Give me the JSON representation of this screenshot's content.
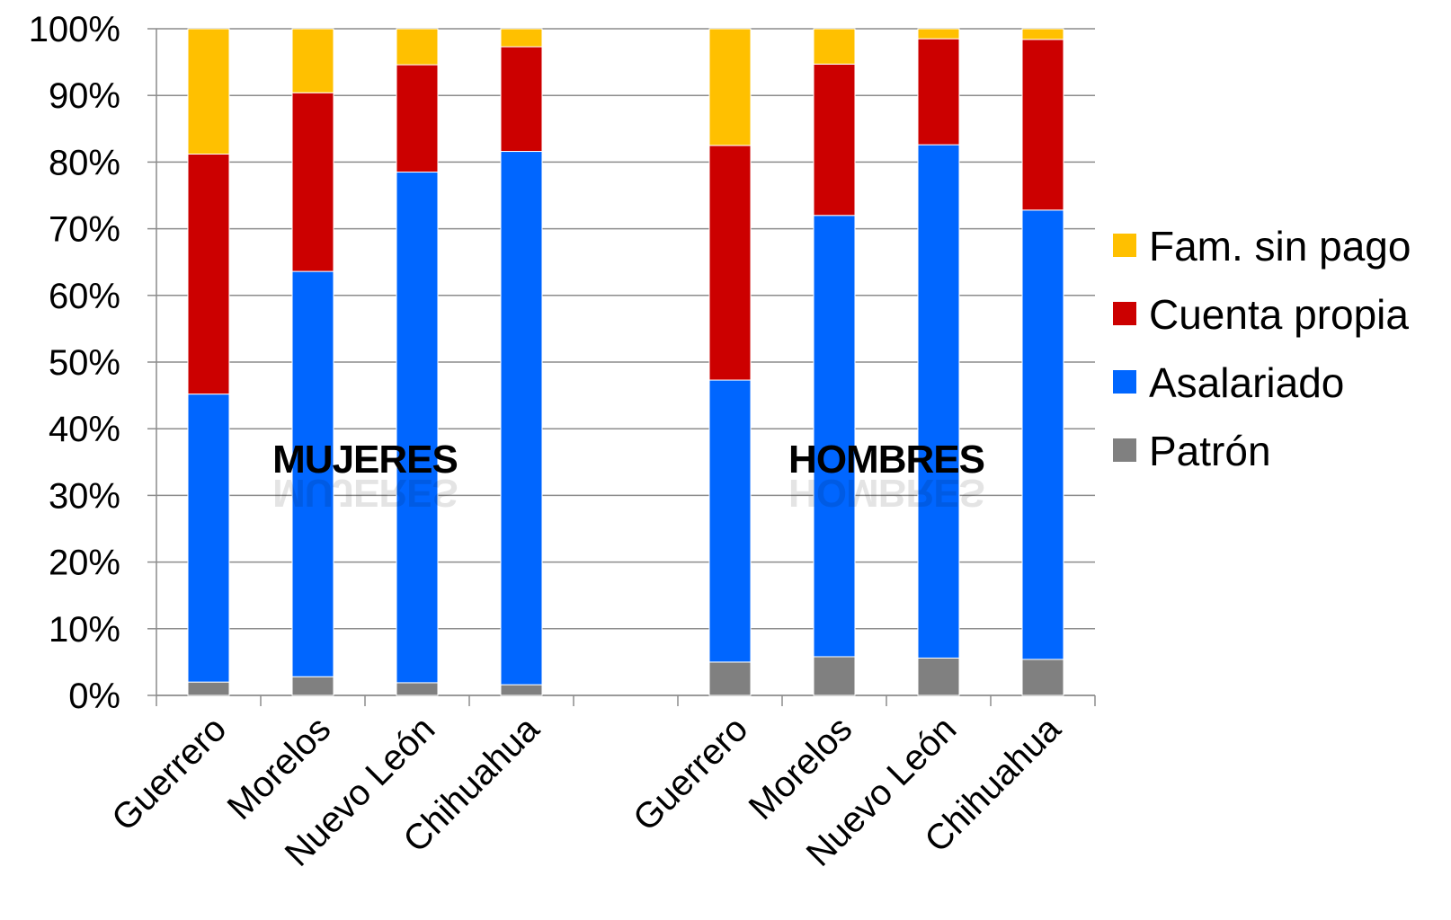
{
  "chart_data": {
    "type": "bar",
    "stacked": true,
    "percent": true,
    "categories": [
      "Guerrero",
      "Morelos",
      "Nuevo León",
      "Chihuahua",
      "",
      "Guerrero",
      "Morelos",
      "Nuevo León",
      "Chihuahua"
    ],
    "group_labels": [
      "MUJERES",
      "HOMBRES"
    ],
    "series": [
      {
        "name": "Patrón",
        "color": "#808080",
        "values": [
          2,
          2.8,
          1.9,
          1.6,
          null,
          5,
          5.8,
          5.6,
          5.4
        ]
      },
      {
        "name": "Asalariado",
        "color": "#0066ff",
        "values": [
          43.2,
          60.8,
          76.6,
          80,
          null,
          42.3,
          66.2,
          77,
          67.4
        ]
      },
      {
        "name": "Cuenta propia",
        "color": "#cc0000",
        "values": [
          36,
          26.8,
          16.1,
          15.7,
          null,
          35.2,
          22.7,
          15.9,
          25.6
        ]
      },
      {
        "name": "Fam. sin pago",
        "color": "#ffc000",
        "values": [
          18.8,
          9.6,
          5.4,
          2.7,
          null,
          17.5,
          5.3,
          1.5,
          1.6
        ]
      }
    ],
    "y_ticks": [
      "0%",
      "10%",
      "20%",
      "30%",
      "40%",
      "50%",
      "60%",
      "70%",
      "80%",
      "90%",
      "100%"
    ],
    "ylim": [
      0,
      100
    ],
    "grid": true,
    "legend_position": "right",
    "legend_order": [
      "Fam. sin pago",
      "Cuenta propia",
      "Asalariado",
      "Patrón"
    ]
  }
}
